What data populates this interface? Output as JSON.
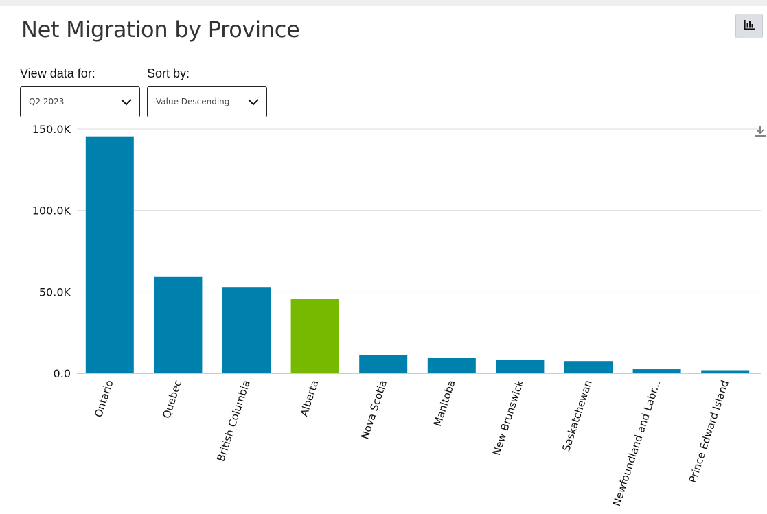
{
  "header": {
    "title": "Net Migration by Province"
  },
  "toolbar": {
    "chart_icon": "bar-chart-icon",
    "download_icon": "download-icon"
  },
  "controls": {
    "view_label": "View data for:",
    "view_value": "Q2 2023",
    "sort_label": "Sort by:",
    "sort_value": "Value Descending"
  },
  "colors": {
    "bar": "#0080ad",
    "highlight": "#76b900",
    "grid": "#dddddd"
  },
  "chart_data": {
    "type": "bar",
    "title": "Net Migration by Province",
    "xlabel": "",
    "ylabel": "",
    "ylim": [
      0,
      150000
    ],
    "yticks": [
      0,
      50000,
      100000,
      150000
    ],
    "ytick_labels": [
      "0.0",
      "50.0K",
      "100.0K",
      "150.0K"
    ],
    "grid": true,
    "highlight": "Alberta",
    "categories": [
      "Ontario",
      "Quebec",
      "British Columbia",
      "Alberta",
      "Nova Scotia",
      "Manitoba",
      "New Brunswick",
      "Saskatchewan",
      "Newfoundland and Labr...",
      "Prince Edward Island"
    ],
    "values": [
      145500,
      59500,
      53000,
      45500,
      11000,
      9500,
      8200,
      7500,
      2500,
      1900
    ]
  }
}
